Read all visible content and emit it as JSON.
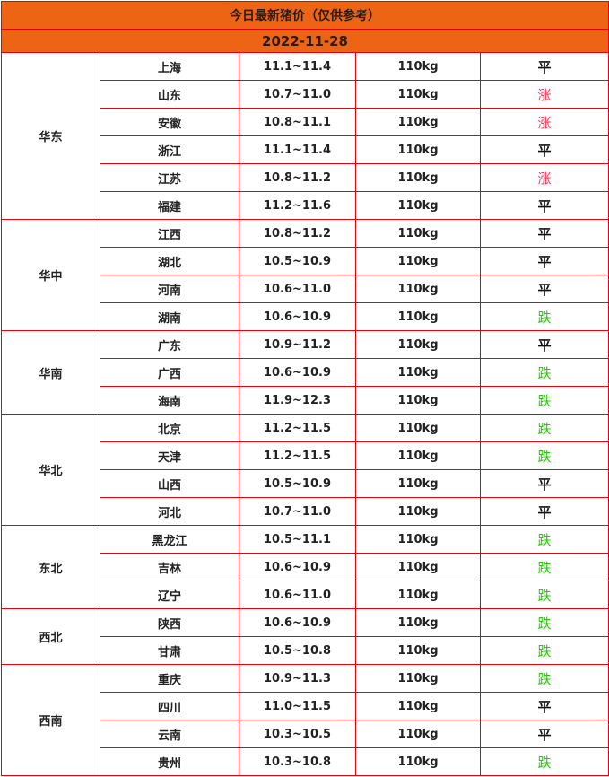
{
  "title": "今日最新猪价（仅供参考）",
  "date": "2022-11-28",
  "colors": {
    "header_bg": "#ec6414",
    "border": "#e8000b",
    "rise": "#ff3355",
    "fall": "#22cc00",
    "flat": "#111111"
  },
  "regions": [
    {
      "name": "华东",
      "rows": [
        {
          "province": "上海",
          "price": "11.1~11.4",
          "weight": "110kg",
          "trend": "平"
        },
        {
          "province": "山东",
          "price": "10.7~11.0",
          "weight": "110kg",
          "trend": "涨"
        },
        {
          "province": "安徽",
          "price": "10.8~11.1",
          "weight": "110kg",
          "trend": "涨"
        },
        {
          "province": "浙江",
          "price": "11.1~11.4",
          "weight": "110kg",
          "trend": "平"
        },
        {
          "province": "江苏",
          "price": "10.8~11.2",
          "weight": "110kg",
          "trend": "涨"
        },
        {
          "province": "福建",
          "price": "11.2~11.6",
          "weight": "110kg",
          "trend": "平"
        }
      ]
    },
    {
      "name": "华中",
      "rows": [
        {
          "province": "江西",
          "price": "10.8~11.2",
          "weight": "110kg",
          "trend": "平"
        },
        {
          "province": "湖北",
          "price": "10.5~10.9",
          "weight": "110kg",
          "trend": "平"
        },
        {
          "province": "河南",
          "price": "10.6~11.0",
          "weight": "110kg",
          "trend": "平"
        },
        {
          "province": "湖南",
          "price": "10.6~10.9",
          "weight": "110kg",
          "trend": "跌"
        }
      ]
    },
    {
      "name": "华南",
      "rows": [
        {
          "province": "广东",
          "price": "10.9~11.2",
          "weight": "110kg",
          "trend": "平"
        },
        {
          "province": "广西",
          "price": "10.6~10.9",
          "weight": "110kg",
          "trend": "跌"
        },
        {
          "province": "海南",
          "price": "11.9~12.3",
          "weight": "110kg",
          "trend": "跌"
        }
      ]
    },
    {
      "name": "华北",
      "rows": [
        {
          "province": "北京",
          "price": "11.2~11.5",
          "weight": "110kg",
          "trend": "跌"
        },
        {
          "province": "天津",
          "price": "11.2~11.5",
          "weight": "110kg",
          "trend": "跌"
        },
        {
          "province": "山西",
          "price": "10.5~10.9",
          "weight": "110kg",
          "trend": "平"
        },
        {
          "province": "河北",
          "price": "10.7~11.0",
          "weight": "110kg",
          "trend": "平"
        }
      ]
    },
    {
      "name": "东北",
      "rows": [
        {
          "province": "黑龙江",
          "price": "10.5~11.1",
          "weight": "110kg",
          "trend": "跌"
        },
        {
          "province": "吉林",
          "price": "10.6~10.9",
          "weight": "110kg",
          "trend": "跌"
        },
        {
          "province": "辽宁",
          "price": "10.6~11.0",
          "weight": "110kg",
          "trend": "跌"
        }
      ]
    },
    {
      "name": "西北",
      "rows": [
        {
          "province": "陕西",
          "price": "10.6~10.9",
          "weight": "110kg",
          "trend": "跌"
        },
        {
          "province": "甘肃",
          "price": "10.5~10.8",
          "weight": "110kg",
          "trend": "跌"
        }
      ]
    },
    {
      "name": "西南",
      "rows": [
        {
          "province": "重庆",
          "price": "10.9~11.3",
          "weight": "110kg",
          "trend": "跌"
        },
        {
          "province": "四川",
          "price": "11.0~11.5",
          "weight": "110kg",
          "trend": "平"
        },
        {
          "province": "云南",
          "price": "10.3~10.5",
          "weight": "110kg",
          "trend": "平"
        },
        {
          "province": "贵州",
          "price": "10.3~10.8",
          "weight": "110kg",
          "trend": "跌"
        }
      ]
    }
  ]
}
